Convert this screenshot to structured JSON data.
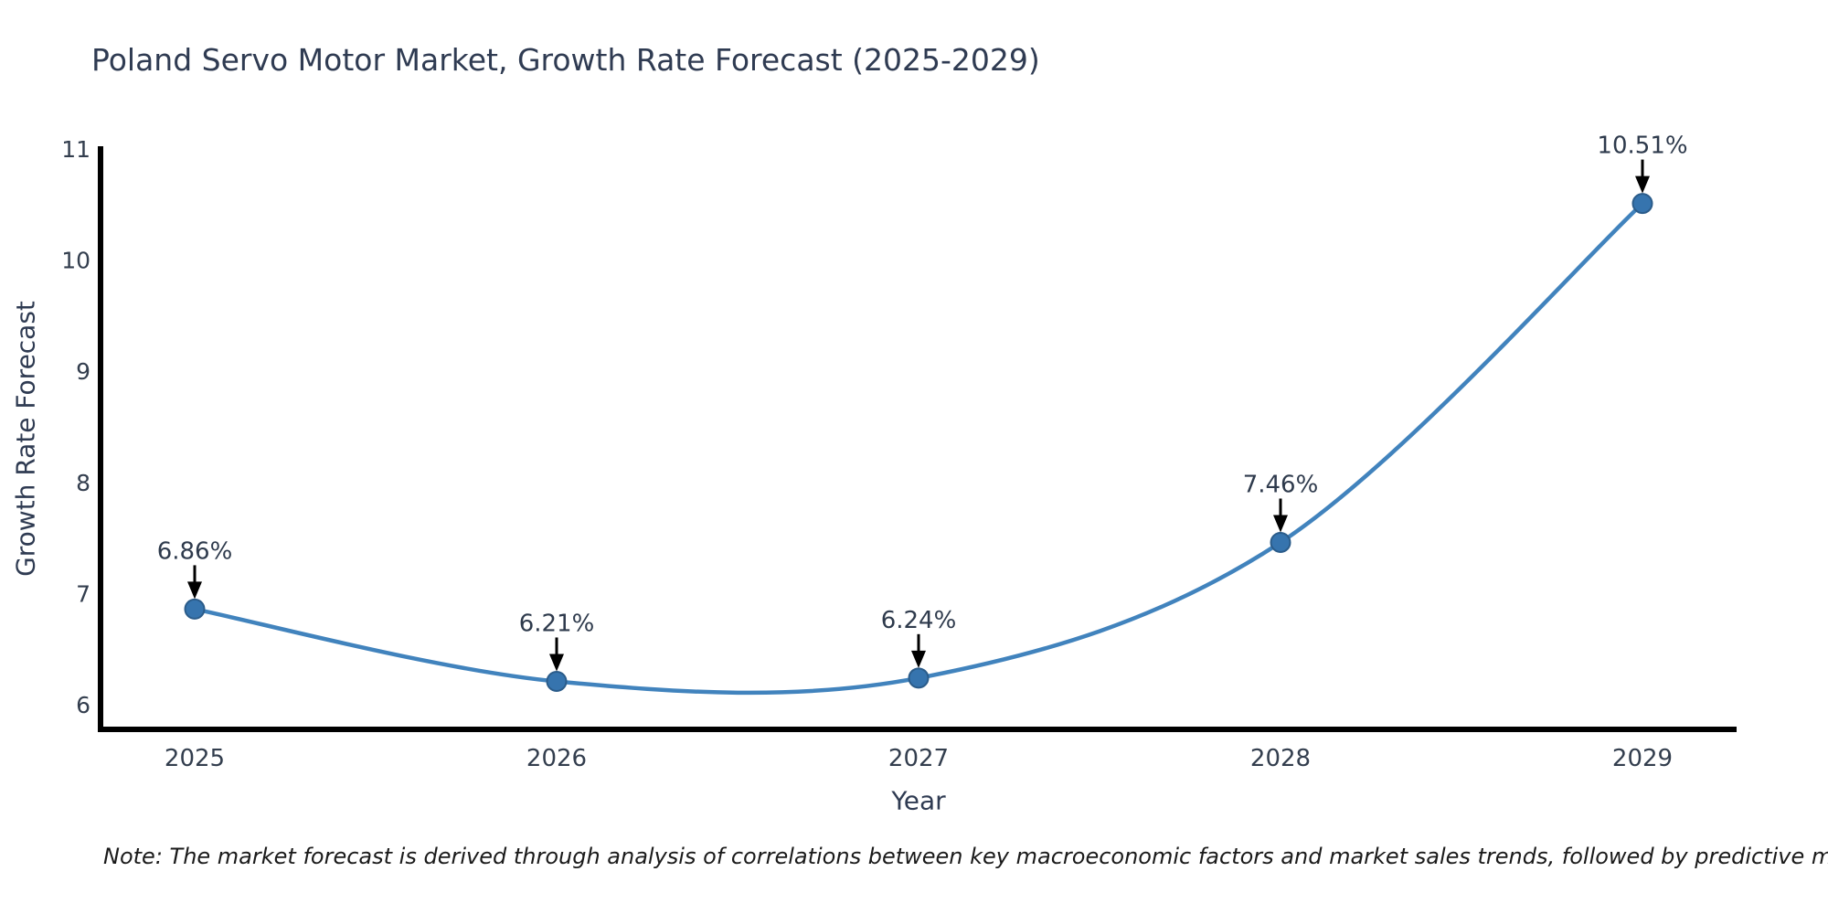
{
  "header": {
    "title": "Poland Servo Motor Market, Growth Rate Forecast (2025-2029)"
  },
  "footer": {
    "note": "Note: The market forecast is derived through analysis of correlations between key macroeconomic factors and market sales trends, followed by predictive modeling to project future sales"
  },
  "chart_data": {
    "type": "line",
    "title": "Poland Servo Motor Market, Growth Rate Forecast (2025-2029)",
    "xlabel": "Year",
    "ylabel": "Growth Rate Forecast",
    "categories": [
      "2025",
      "2026",
      "2027",
      "2028",
      "2029"
    ],
    "values": [
      6.86,
      6.21,
      6.24,
      7.46,
      10.51
    ],
    "point_labels": [
      "6.86%",
      "6.21%",
      "6.24%",
      "7.46%",
      "10.51%"
    ],
    "yticks": [
      6,
      7,
      8,
      9,
      10,
      11
    ],
    "ylim": [
      5.78,
      11
    ],
    "line_shape": "spline",
    "grid": false,
    "legend": "none",
    "annotation_style": "value label above point with downward black arrow",
    "colors": {
      "line": "#4183bd",
      "marker_fill": "#3674ae",
      "marker_edge": "#2b5c8a",
      "axis": "#000000",
      "title_text": "#2f3b52",
      "tick_text": "#333e4e",
      "annotation_text": "#2e3a4c",
      "arrow": "#000000",
      "note_text": "#1a1a1a"
    }
  }
}
